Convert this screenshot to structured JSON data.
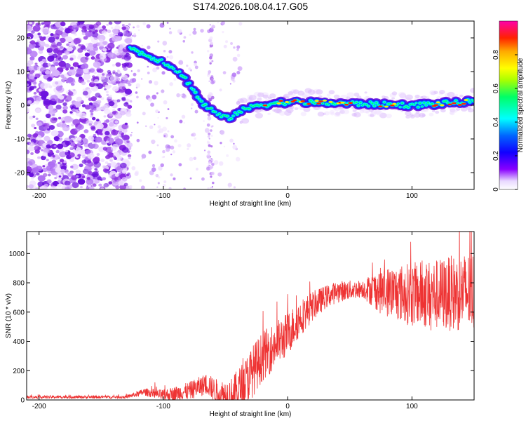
{
  "page_title": "S174.2026.108.04.17.G05",
  "colors": {
    "snr_line": "#ee3333",
    "axis": "#000000",
    "background": "#ffffff",
    "scatter_palette": [
      "#f0e0ff",
      "#d8b4fc",
      "#b070f4",
      "#8a2be2",
      "#6a10dd"
    ],
    "colormap_stops": [
      "#ff00ff",
      "#ff0000",
      "#ffaa00",
      "#ffff00",
      "#00ff00",
      "#00ffff",
      "#0066ff",
      "#0000ff",
      "#8800ff",
      "#ffffff"
    ]
  },
  "chart_data": [
    {
      "type": "heatmap",
      "title": "S174.2026.108.04.17.G05",
      "xlabel": "Height of straight line (km)",
      "ylabel": "Frequency (Hz)",
      "xlim": [
        -210,
        150
      ],
      "ylim": [
        -25,
        25
      ],
      "xticks": [
        -200,
        -100,
        0,
        100
      ],
      "yticks": [
        20,
        10,
        0,
        -10,
        -20
      ],
      "colorbar": {
        "label": "Normalized spectral amplitude",
        "range": [
          0,
          1
        ],
        "ticks": [
          0,
          0.2,
          0.4,
          0.6,
          0.8
        ]
      },
      "ridge": [
        {
          "x": -127,
          "y": 17
        },
        {
          "x": -115,
          "y": 15
        },
        {
          "x": -100,
          "y": 13
        },
        {
          "x": -88,
          "y": 10
        },
        {
          "x": -78,
          "y": 6
        },
        {
          "x": -70,
          "y": 1
        },
        {
          "x": -63,
          "y": -1
        },
        {
          "x": -55,
          "y": -3
        },
        {
          "x": -48,
          "y": -4
        },
        {
          "x": -40,
          "y": -2
        },
        {
          "x": -25,
          "y": 0
        },
        {
          "x": 0,
          "y": 1
        },
        {
          "x": 50,
          "y": 0.5
        },
        {
          "x": 100,
          "y": 0
        },
        {
          "x": 150,
          "y": 1
        }
      ]
    },
    {
      "type": "line",
      "title": "",
      "xlabel": "Height of straight line (km)",
      "ylabel": "SNR (10 * v/v)",
      "xlim": [
        -210,
        150
      ],
      "ylim": [
        0,
        1150
      ],
      "xticks": [
        -200,
        -100,
        0,
        100
      ],
      "yticks": [
        0,
        200,
        400,
        600,
        800,
        1000
      ],
      "series": [
        {
          "name": "SNR",
          "envelope": [
            {
              "x": -210,
              "y": 20
            },
            {
              "x": -130,
              "y": 20
            },
            {
              "x": -115,
              "y": 55
            },
            {
              "x": -100,
              "y": 30
            },
            {
              "x": -80,
              "y": 60
            },
            {
              "x": -65,
              "y": 110
            },
            {
              "x": -55,
              "y": 40
            },
            {
              "x": -45,
              "y": 25
            },
            {
              "x": -35,
              "y": 110
            },
            {
              "x": -20,
              "y": 300
            },
            {
              "x": 0,
              "y": 450
            },
            {
              "x": 10,
              "y": 560
            },
            {
              "x": 20,
              "y": 640
            },
            {
              "x": 30,
              "y": 700
            },
            {
              "x": 40,
              "y": 740
            },
            {
              "x": 60,
              "y": 760
            },
            {
              "x": 80,
              "y": 740
            },
            {
              "x": 100,
              "y": 720
            },
            {
              "x": 120,
              "y": 720
            },
            {
              "x": 150,
              "y": 740
            }
          ],
          "noise_amplitude": [
            {
              "x": -210,
              "y": 10
            },
            {
              "x": -130,
              "y": 10
            },
            {
              "x": -110,
              "y": 30
            },
            {
              "x": -60,
              "y": 80
            },
            {
              "x": -30,
              "y": 180
            },
            {
              "x": 0,
              "y": 150
            },
            {
              "x": 30,
              "y": 80
            },
            {
              "x": 60,
              "y": 60
            },
            {
              "x": 75,
              "y": 160
            },
            {
              "x": 100,
              "y": 220
            },
            {
              "x": 150,
              "y": 280
            }
          ]
        }
      ]
    }
  ]
}
